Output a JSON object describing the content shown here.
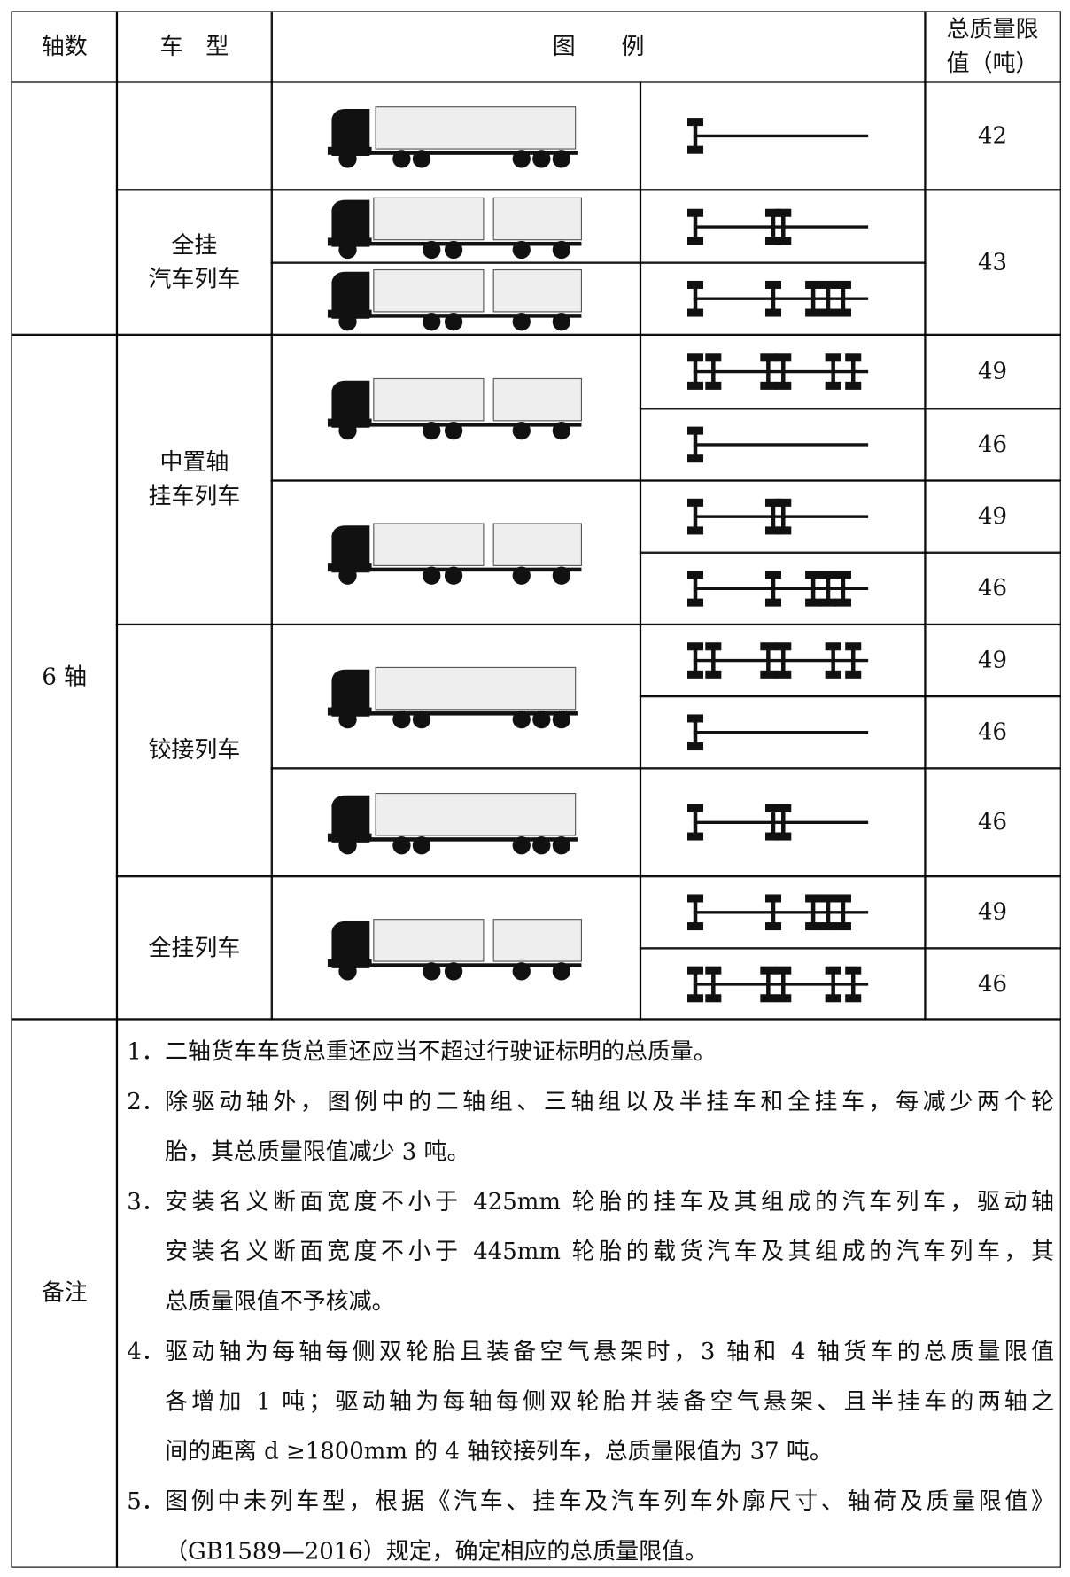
{
  "header": {
    "axle": "轴数",
    "type": "车　型",
    "legend": "图　　例",
    "limit": [
      "总质量限",
      "值（吨）"
    ]
  },
  "groups": [
    {
      "types": [
        {
          "limits": [
            42
          ]
        },
        {
          "name": [
            "全挂",
            "汽车列车"
          ],
          "limits": [
            43
          ]
        }
      ]
    },
    {
      "axle": "6 轴",
      "types": [
        {
          "name": [
            "中置轴",
            "挂车列车"
          ],
          "limits": [
            49,
            46,
            49,
            46
          ]
        },
        {
          "name": [
            "铰接列车"
          ],
          "limits": [
            49,
            46,
            46
          ]
        },
        {
          "name": [
            "全挂列车"
          ],
          "limits": [
            49,
            46
          ]
        }
      ]
    }
  ],
  "notes": {
    "label": "备注",
    "items": [
      {
        "number": "1．",
        "lines": [
          "二轴货车车货总重还应当不超过行驶证标明的总质量。"
        ]
      },
      {
        "number": "2．",
        "lines": [
          "除驱动轴外，图例中的二轴组、三轴组以及半挂车和全挂车，每减少两个轮",
          "胎，其总质量限值减少 3 吨。"
        ]
      },
      {
        "number": "3．",
        "lines": [
          "安装名义断面宽度不小于 425mm 轮胎的挂车及其组成的汽车列车，驱动轴",
          "安装名义断面宽度不小于 445mm 轮胎的载货汽车及其组成的汽车列车，其",
          "总质量限值不予核减。"
        ]
      },
      {
        "number": "4．",
        "lines": [
          "驱动轴为每轴每侧双轮胎且装备空气悬架时，3 轴和 4 轴货车的总质量限值",
          "各增加 1 吨；驱动轴为每轴每侧双轮胎并装备空气悬架、且半挂车的两轴之",
          "间的距离 d ≥1800mm 的 4 轴铰接列车，总质量限值为 37 吨。"
        ]
      },
      {
        "number": "5．",
        "lines": [
          "图例中未列车型，根据《汽车、挂车及汽车列车外廓尺寸、轴荷及质量限值》",
          "（GB1589—2016）规定，确定相应的总质量限值。"
        ]
      }
    ]
  }
}
